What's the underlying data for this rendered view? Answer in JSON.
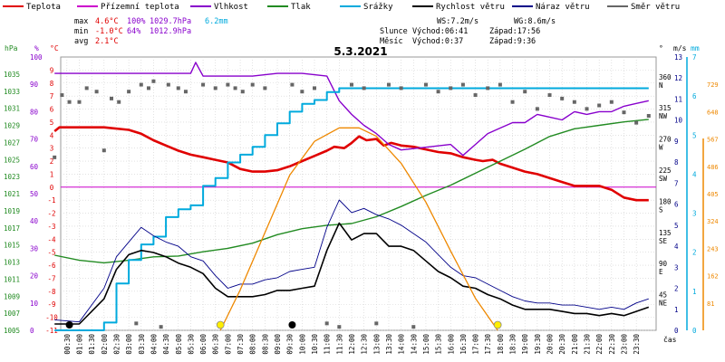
{
  "legend": [
    {
      "label": "Teplota",
      "color": "#e00000"
    },
    {
      "label": "Přízemní teplota",
      "color": "#cc00cc"
    },
    {
      "label": "Vlhkost",
      "color": "#8800cc"
    },
    {
      "label": "Tlak",
      "color": "#228b22"
    },
    {
      "label": "Srážky",
      "color": "#00aadd"
    },
    {
      "label": "Rychlost větru",
      "color": "#000000"
    },
    {
      "label": "Náraz větru",
      "color": "#000088"
    },
    {
      "label": "Směr větru",
      "color": "#666666"
    }
  ],
  "stats": {
    "max_label": "max",
    "max_temp": "4.6°C",
    "max_hum": "100%",
    "max_press": "1029.7hPa",
    "precip": "6.2mm",
    "min_label": "min",
    "min_temp": "-1.0°C",
    "min_hum": "64%",
    "min_press": "1012.9hPa",
    "avg_label": "avg",
    "avg_temp": "2.1°C"
  },
  "wind": {
    "ws": "WS:7.2m/s",
    "wg": "WG:8.6m/s"
  },
  "sun": {
    "label": "Slunce",
    "rise": "Východ:06:41",
    "set": "Západ:17:56"
  },
  "moon": {
    "label": "Měsíc",
    "rise": "Východ:0:37",
    "set": "Západ:9:36"
  },
  "colors": {
    "temperature": "#e00000",
    "ground_temp": "#cc00cc",
    "humidity": "#8800cc",
    "pressure": "#228b22",
    "precipitation": "#00aadd",
    "wind_speed": "#000000",
    "wind_gust": "#000088",
    "wind_dir": "#666666",
    "solar": "#ee8800"
  },
  "chart_data": {
    "type": "line",
    "title": "5.3.2021",
    "xlabel": "čas",
    "x_ticks": [
      "00:30",
      "01:00",
      "01:30",
      "02:00",
      "02:30",
      "03:00",
      "03:30",
      "04:00",
      "04:30",
      "05:00",
      "05:30",
      "06:00",
      "06:30",
      "07:00",
      "07:30",
      "08:00",
      "08:30",
      "09:00",
      "09:30",
      "10:00",
      "10:30",
      "11:00",
      "11:30",
      "12:00",
      "12:30",
      "13:00",
      "13:30",
      "14:00",
      "14:30",
      "15:00",
      "15:30",
      "16:00",
      "16:30",
      "17:00",
      "17:30",
      "18:00",
      "18:30",
      "19:00",
      "19:30",
      "20:00",
      "20:30",
      "21:00",
      "21:30",
      "22:00",
      "22:30",
      "23:00",
      "23:30"
    ],
    "axes": {
      "pressure": {
        "label": "hPa",
        "min": 1005,
        "max": 1037,
        "ticks": [
          1005,
          1007,
          1009,
          1011,
          1013,
          1015,
          1017,
          1019,
          1021,
          1023,
          1025,
          1027,
          1029,
          1031,
          1033,
          1035
        ]
      },
      "humidity": {
        "label": "%",
        "min": 0,
        "max": 100,
        "ticks": [
          0,
          10,
          20,
          30,
          40,
          50,
          60,
          70,
          80,
          90,
          100
        ]
      },
      "temperature": {
        "label": "°C",
        "min": -11,
        "max": 10,
        "ticks": [
          -11,
          -10,
          -9,
          -8,
          -7,
          -6,
          -5,
          -4,
          -3,
          -2,
          -1,
          0,
          1,
          2,
          3,
          4,
          5,
          6,
          7,
          8,
          9
        ]
      },
      "wind_dir": {
        "label": "°",
        "ticks": [
          {
            "v": 45,
            "l": "NE"
          },
          {
            "v": 90,
            "l": "E"
          },
          {
            "v": 135,
            "l": "SE"
          },
          {
            "v": 180,
            "l": "S"
          },
          {
            "v": 225,
            "l": "SW"
          },
          {
            "v": 270,
            "l": "W"
          },
          {
            "v": 315,
            "l": "NW"
          },
          {
            "v": 360,
            "l": "N"
          }
        ]
      },
      "wind_speed": {
        "label": "m/s",
        "min": 0,
        "max": 13,
        "ticks": [
          0,
          1,
          2,
          3,
          4,
          5,
          6,
          7,
          8,
          9,
          10,
          11,
          12,
          13
        ]
      },
      "precipitation": {
        "label": "mm",
        "min": 0,
        "max": 7,
        "ticks": [
          0,
          1,
          2,
          3,
          4,
          5,
          6,
          7
        ]
      },
      "solar": {
        "label": "",
        "min": 0,
        "max": 810,
        "ticks": [
          81,
          162,
          243,
          324,
          405,
          486,
          567,
          648,
          729
        ]
      }
    },
    "series": [
      {
        "name": "Teplota",
        "axis": "temperature",
        "x": [
          0,
          0.2,
          1,
          2,
          3,
          3.5,
          4,
          4.5,
          5,
          5.5,
          6,
          6.5,
          7,
          7.5,
          8,
          8.5,
          9,
          9.5,
          10,
          10.5,
          11,
          11.3,
          11.7,
          12,
          12.3,
          12.6,
          13,
          13.3,
          13.6,
          14,
          14.5,
          15,
          15.5,
          16,
          16.5,
          17,
          17.3,
          17.7,
          18,
          18.5,
          19,
          19.5,
          20,
          20.5,
          21,
          21.5,
          22,
          22.5,
          23,
          23.5,
          24
        ],
        "y": [
          4.3,
          4.6,
          4.6,
          4.6,
          4.4,
          4.1,
          3.6,
          3.2,
          2.8,
          2.5,
          2.3,
          2.1,
          1.9,
          1.4,
          1.2,
          1.2,
          1.3,
          1.6,
          2.0,
          2.4,
          2.8,
          3.1,
          3.0,
          3.4,
          3.9,
          3.6,
          3.7,
          3.2,
          3.4,
          3.2,
          3.1,
          2.9,
          2.7,
          2.6,
          2.3,
          2.1,
          2.0,
          2.1,
          1.8,
          1.5,
          1.2,
          1.0,
          0.7,
          0.4,
          0.1,
          0.1,
          0.1,
          -0.2,
          -0.8,
          -1.0,
          -1.0
        ]
      },
      {
        "name": "Vlhkost",
        "axis": "humidity",
        "x": [
          0,
          0.5,
          1,
          2,
          3,
          4,
          5,
          5.5,
          5.7,
          6,
          7,
          8,
          9,
          10,
          11,
          11.5,
          12,
          12.5,
          13,
          13.5,
          14,
          15,
          16,
          16.5,
          17,
          17.5,
          18,
          18.5,
          19,
          19.5,
          20,
          20.5,
          21,
          21.5,
          22,
          22.5,
          23,
          23.5,
          24
        ],
        "y": [
          94,
          94,
          94,
          94,
          94,
          94,
          94,
          94,
          98,
          93,
          93,
          93,
          94,
          94,
          93,
          84,
          79,
          75,
          72,
          68,
          66,
          67,
          68,
          64,
          68,
          72,
          74,
          76,
          76,
          79,
          78,
          77,
          80,
          79,
          80,
          80,
          82,
          83,
          84
        ]
      },
      {
        "name": "Tlak",
        "axis": "pressure",
        "x": [
          0,
          1,
          2,
          3,
          4,
          5,
          6,
          7,
          8,
          9,
          10,
          11,
          12,
          13,
          14,
          15,
          16,
          17,
          18,
          19,
          20,
          21,
          22,
          23,
          24
        ],
        "y": [
          1013.8,
          1013.2,
          1012.9,
          1013.2,
          1013.6,
          1013.7,
          1014.2,
          1014.6,
          1015.2,
          1016.2,
          1016.9,
          1017.3,
          1017.5,
          1018.3,
          1019.5,
          1020.8,
          1022.0,
          1023.4,
          1024.8,
          1026.2,
          1027.7,
          1028.6,
          1029.0,
          1029.4,
          1029.7
        ]
      },
      {
        "name": "Srážky",
        "axis": "precipitation",
        "x": [
          0,
          1.5,
          2.0,
          2.5,
          3.0,
          3.5,
          4.0,
          4.5,
          5.0,
          5.5,
          6.0,
          6.5,
          7.0,
          7.5,
          8.0,
          8.5,
          9.0,
          9.5,
          10.0,
          10.5,
          11.0,
          11.5,
          12,
          24
        ],
        "y": [
          0,
          0,
          0.2,
          1.2,
          1.8,
          2.2,
          2.4,
          2.9,
          3.1,
          3.2,
          3.7,
          3.9,
          4.3,
          4.5,
          4.7,
          5.0,
          5.3,
          5.6,
          5.8,
          5.9,
          6.1,
          6.2,
          6.2,
          6.2
        ]
      },
      {
        "name": "Rychlost větru",
        "axis": "wind_speed",
        "x": [
          0,
          1,
          2,
          2.5,
          3,
          3.5,
          4,
          4.5,
          5,
          5.5,
          6,
          6.5,
          7,
          7.5,
          8,
          8.5,
          9,
          9.5,
          10,
          10.5,
          11,
          11.5,
          12,
          12.5,
          13,
          13.5,
          14,
          14.5,
          15,
          15.5,
          16,
          16.5,
          17,
          17.5,
          18,
          18.5,
          19,
          19.5,
          20,
          20.5,
          21,
          21.5,
          22,
          22.5,
          23,
          23.5,
          24
        ],
        "y": [
          0.3,
          0.3,
          1.5,
          2.9,
          3.6,
          3.8,
          3.7,
          3.5,
          3.2,
          3.0,
          2.7,
          2.0,
          1.6,
          1.6,
          1.6,
          1.7,
          1.9,
          1.9,
          2.0,
          2.1,
          3.8,
          5.1,
          4.3,
          4.6,
          4.6,
          4.0,
          4.0,
          3.8,
          3.3,
          2.8,
          2.5,
          2.1,
          2.0,
          1.7,
          1.5,
          1.2,
          1.0,
          1.0,
          1.0,
          0.9,
          0.8,
          0.8,
          0.7,
          0.8,
          0.7,
          0.9,
          1.1
        ]
      },
      {
        "name": "Náraz větru",
        "axis": "wind_speed",
        "x": [
          0,
          1,
          2,
          2.5,
          3,
          3.5,
          4,
          4.5,
          5,
          5.5,
          6,
          6.5,
          7,
          7.5,
          8,
          8.5,
          9,
          9.5,
          10,
          10.5,
          11,
          11.5,
          12,
          12.5,
          13,
          13.5,
          14,
          14.5,
          15,
          15.5,
          16,
          16.5,
          17,
          17.5,
          18,
          18.5,
          19,
          19.5,
          20,
          20.5,
          21,
          21.5,
          22,
          22.5,
          23,
          23.5,
          24
        ],
        "y": [
          0.5,
          0.4,
          2.0,
          3.5,
          4.2,
          4.9,
          4.5,
          4.2,
          4.0,
          3.5,
          3.3,
          2.6,
          2.0,
          2.2,
          2.2,
          2.4,
          2.5,
          2.8,
          2.9,
          3.0,
          4.9,
          6.2,
          5.6,
          5.8,
          5.5,
          5.3,
          5.0,
          4.6,
          4.2,
          3.6,
          3.0,
          2.6,
          2.5,
          2.2,
          1.9,
          1.6,
          1.4,
          1.3,
          1.3,
          1.2,
          1.2,
          1.1,
          1.0,
          1.1,
          1.0,
          1.3,
          1.5
        ]
      },
      {
        "name": "Solar",
        "axis": "solar",
        "x": [
          6.7,
          7.5,
          8.5,
          9.5,
          10.5,
          11.5,
          12.3,
          13,
          14,
          15,
          16,
          17,
          17.9
        ],
        "y": [
          0,
          120,
          290,
          460,
          560,
          600,
          600,
          575,
          495,
          380,
          235,
          95,
          0
        ]
      },
      {
        "name": "Směr větru",
        "axis": "wind_dir",
        "type": "scatter",
        "x": [
          0,
          0.3,
          0.6,
          1,
          1.3,
          1.7,
          2,
          2.3,
          2.6,
          3,
          3.3,
          3.5,
          3.8,
          4,
          4.3,
          4.6,
          5,
          5.3,
          6,
          6.5,
          7,
          7.3,
          7.6,
          8,
          8.5,
          9.6,
          10,
          10.5,
          11,
          11.5,
          12,
          12.5,
          13,
          13.5,
          14,
          14.5,
          15,
          15.5,
          16,
          16.5,
          17,
          17.5,
          18,
          18.5,
          19,
          19.5,
          20,
          20.5,
          21,
          21.5,
          22,
          22.5,
          23,
          23.5,
          24
        ],
        "y": [
          250,
          340,
          330,
          330,
          350,
          345,
          260,
          335,
          330,
          345,
          10,
          355,
          350,
          360,
          5,
          355,
          350,
          345,
          355,
          350,
          355,
          350,
          345,
          355,
          350,
          355,
          345,
          350,
          10,
          5,
          355,
          350,
          10,
          355,
          350,
          5,
          355,
          345,
          350,
          355,
          340,
          350,
          355,
          330,
          345,
          320,
          340,
          335,
          330,
          320,
          325,
          330,
          315,
          300,
          310
        ]
      }
    ],
    "sun_marks": [
      6.7,
      17.9
    ],
    "moon_marks": [
      0.6,
      9.6
    ],
    "grid": true
  }
}
